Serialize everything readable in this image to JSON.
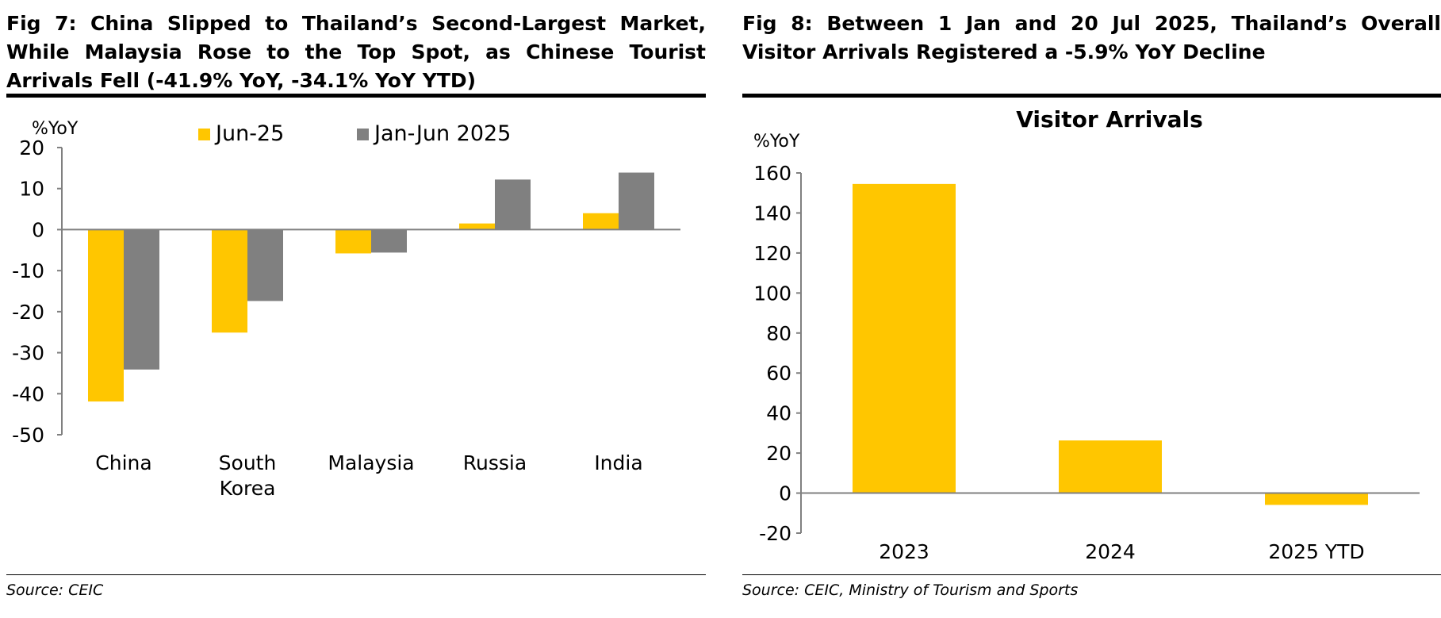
{
  "figures": [
    {
      "title": "Fig 7: China Slipped to Thailand’s Second-Largest Market, While Malaysia Rose to the Top Spot, as Chinese Tourist Arrivals Fell (-41.9% YoY, -34.1% YoY YTD)",
      "source": "Source: CEIC"
    },
    {
      "title": "Fig 8: Between 1 Jan and 20 Jul 2025, Thailand’s Overall Visitor Arrivals Registered a -5.9% YoY Decline",
      "source": "Source: CEIC, Ministry of Tourism and Sports"
    }
  ],
  "chart_data": [
    {
      "type": "bar",
      "title": "",
      "ylabel": "%YoY",
      "ylim": [
        -50,
        20
      ],
      "yticks": [
        20,
        10,
        0,
        -10,
        -20,
        -30,
        -40,
        -50
      ],
      "categories": [
        "China",
        "South Korea",
        "Malaysia",
        "Russia",
        "India"
      ],
      "category_lines": [
        [
          "China"
        ],
        [
          "South",
          "Korea"
        ],
        [
          "Malaysia"
        ],
        [
          "Russia"
        ],
        [
          "India"
        ]
      ],
      "series": [
        {
          "name": "Jun-25",
          "color": "#FFC600",
          "values": [
            -41.9,
            -25.1,
            -5.8,
            1.5,
            4.0
          ]
        },
        {
          "name": "Jan-Jun 2025",
          "color": "#808080",
          "values": [
            -34.1,
            -17.4,
            -5.6,
            12.2,
            13.9
          ]
        }
      ],
      "legend": "top",
      "grid": false
    },
    {
      "type": "bar",
      "title": "Visitor Arrivals",
      "ylabel": "%YoY",
      "ylim": [
        -20,
        160
      ],
      "yticks": [
        160,
        140,
        120,
        100,
        80,
        60,
        40,
        20,
        0,
        -20
      ],
      "categories": [
        "2023",
        "2024",
        "2025 YTD"
      ],
      "series": [
        {
          "color": "#FFC600",
          "values": [
            154.5,
            26.3,
            -5.9
          ]
        }
      ],
      "grid": false
    }
  ]
}
